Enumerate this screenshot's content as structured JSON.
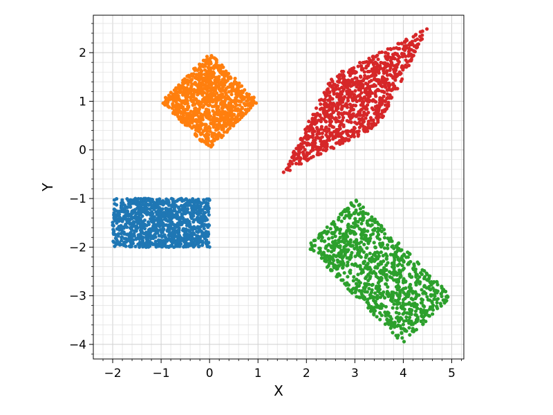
{
  "chart_data": {
    "type": "scatter",
    "title": "",
    "xlabel": "X",
    "ylabel": "Y",
    "xlim": [
      -2.4,
      5.25
    ],
    "ylim": [
      -4.3,
      2.77
    ],
    "x_ticks": [
      -2,
      -1,
      0,
      1,
      2,
      3,
      4,
      5
    ],
    "x_tick_labels": [
      "−2",
      "−1",
      "0",
      "1",
      "2",
      "3",
      "4",
      "5"
    ],
    "y_ticks": [
      -4,
      -3,
      -2,
      -1,
      0,
      1,
      2
    ],
    "y_tick_labels": [
      "−4",
      "−3",
      "−2",
      "−1",
      "0",
      "1",
      "2"
    ],
    "grid": true,
    "minor_grid_step": 0.2,
    "legend": "none",
    "series": [
      {
        "color": "#1f77b4",
        "shape": "rectangle",
        "corners": [
          [
            -2,
            -2
          ],
          [
            0,
            -2
          ],
          [
            0,
            -1
          ],
          [
            -2,
            -1
          ]
        ],
        "approx_point_count": 1000
      },
      {
        "color": "#ff7f0e",
        "shape": "diamond",
        "corners": [
          [
            0,
            0
          ],
          [
            1,
            1
          ],
          [
            0,
            2
          ],
          [
            -1,
            1
          ]
        ],
        "approx_point_count": 1000
      },
      {
        "color": "#d62728",
        "shape": "parallelogram",
        "corners": [
          [
            1.5,
            -0.5
          ],
          [
            3.5,
            0.5
          ],
          [
            4.5,
            2.5
          ],
          [
            2.5,
            1.5
          ]
        ],
        "approx_point_count": 1000
      },
      {
        "color": "#2ca02c",
        "shape": "rotated-rectangle",
        "corners": [
          [
            2,
            -2
          ],
          [
            4,
            -4
          ],
          [
            5,
            -3
          ],
          [
            3,
            -1
          ]
        ],
        "approx_point_count": 1000
      }
    ]
  }
}
